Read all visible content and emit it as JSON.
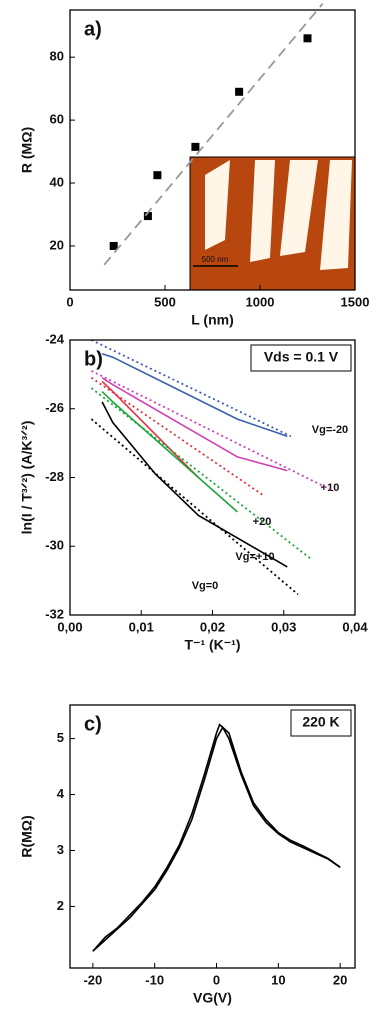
{
  "chart_data": [
    {
      "type": "scatter",
      "panel_label": "a)",
      "x_label": "L (nm)",
      "y_label": "R (MΩ)",
      "xlim": [
        0,
        1500
      ],
      "xticks": [
        0,
        500,
        1000,
        1500
      ],
      "ylim": [
        6,
        95
      ],
      "yticks": [
        20,
        40,
        60,
        80
      ],
      "inset_label": "500 nm",
      "series": [
        {
          "color": "#000000",
          "marker": "square",
          "x": [
            230,
            410,
            460,
            660,
            890,
            1250
          ],
          "values": [
            20,
            29.5,
            42.5,
            51.5,
            69,
            86
          ]
        },
        {
          "color": "#999999",
          "style": "dashed",
          "x": [
            180,
            1330
          ],
          "values": [
            14,
            97
          ]
        }
      ]
    },
    {
      "type": "line",
      "panel_label": "b)",
      "x_label": "T⁻¹ (K⁻¹)",
      "y_label": "ln(I / T³ᐟ²)  (A/K³ᐟ²)",
      "annotation": "Vds = 0.1 V",
      "xlim": [
        0,
        0.04
      ],
      "xticks": [
        {
          "value": 0,
          "label": "0,00"
        },
        {
          "value": 0.01,
          "label": "0,01"
        },
        {
          "value": 0.02,
          "label": "0,02"
        },
        {
          "value": 0.03,
          "label": "0,03"
        },
        {
          "value": 0.04,
          "label": "0,04"
        }
      ],
      "ylim": [
        -32,
        -24
      ],
      "yticks": [
        -32,
        -30,
        -28,
        -26,
        -24
      ],
      "series": [
        {
          "name": "Vg=-20",
          "color": "#3a5fb0",
          "style": "solid",
          "x": [
            0.0045,
            0.006,
            0.0235,
            0.0305
          ],
          "values": [
            -24.4,
            -24.5,
            -26.3,
            -26.8
          ]
        },
        {
          "name": "+10",
          "color": "#d03fb0",
          "style": "solid",
          "x": [
            0.0045,
            0.006,
            0.0235,
            0.0305
          ],
          "values": [
            -25.1,
            -25.3,
            -27.4,
            -27.8
          ]
        },
        {
          "name": "+20",
          "color": "#e8303f",
          "style": "solid",
          "x": [
            0.0045,
            0.006,
            0.018
          ],
          "values": [
            -25.2,
            -25.5,
            -28.0
          ]
        },
        {
          "name": "Vg=+10",
          "color": "#1aa53a",
          "style": "solid",
          "x": [
            0.0045,
            0.006,
            0.0235
          ],
          "values": [
            -25.5,
            -25.8,
            -29.0
          ]
        },
        {
          "name": "Vg=0",
          "color": "#000000",
          "style": "solid",
          "x": [
            0.0045,
            0.006,
            0.012,
            0.018,
            0.0305
          ],
          "values": [
            -25.8,
            -26.4,
            -27.9,
            -29.1,
            -30.6
          ]
        },
        {
          "color": "#3a5fb0",
          "style": "dotted",
          "x": [
            0.003,
            0.031
          ],
          "values": [
            -24.0,
            -26.8
          ]
        },
        {
          "color": "#d03fb0",
          "style": "dotted",
          "x": [
            0.003,
            0.037
          ],
          "values": [
            -24.9,
            -28.4
          ]
        },
        {
          "color": "#e8303f",
          "style": "dotted",
          "x": [
            0.003,
            0.027
          ],
          "values": [
            -25.1,
            -28.5
          ]
        },
        {
          "color": "#1aa53a",
          "style": "dotted",
          "x": [
            0.003,
            0.034
          ],
          "values": [
            -25.4,
            -30.4
          ]
        },
        {
          "color": "#000000",
          "style": "dotted",
          "x": [
            0.003,
            0.032
          ],
          "values": [
            -26.3,
            -31.4
          ]
        }
      ]
    },
    {
      "type": "line",
      "panel_label": "c)",
      "x_label": "VG(V)",
      "y_label": "R(MΩ)",
      "annotation": "220 K",
      "xlim": [
        -23.7,
        22.4
      ],
      "xticks": [
        -20,
        -10,
        0,
        10,
        20
      ],
      "ylim": [
        0.9,
        5.6
      ],
      "yticks": [
        2,
        3,
        4,
        5
      ],
      "series": [
        {
          "color": "#000000",
          "style": "solid",
          "x": [
            -20,
            -18,
            -16,
            -14,
            -12,
            -10,
            -8,
            -6,
            -4,
            -2,
            0,
            1,
            2,
            4,
            6,
            8,
            10,
            12,
            14,
            16,
            18,
            20
          ],
          "values": [
            1.2,
            1.4,
            1.6,
            1.8,
            2.05,
            2.3,
            2.65,
            3.05,
            3.55,
            4.25,
            5.0,
            5.2,
            5.0,
            4.35,
            3.8,
            3.5,
            3.3,
            3.15,
            3.05,
            2.95,
            2.85,
            2.7
          ]
        },
        {
          "color": "#000000",
          "style": "solid",
          "x": [
            -20,
            -18,
            -16,
            -14,
            -12,
            -10,
            -8,
            -6,
            -4,
            -2,
            0,
            0.5,
            2,
            4,
            6,
            8,
            10,
            12,
            14,
            16,
            18,
            20
          ],
          "values": [
            1.2,
            1.45,
            1.62,
            1.85,
            2.08,
            2.35,
            2.7,
            3.1,
            3.65,
            4.35,
            5.1,
            5.25,
            5.1,
            4.4,
            3.85,
            3.55,
            3.32,
            3.18,
            3.08,
            2.97,
            2.86,
            2.7
          ]
        }
      ]
    }
  ]
}
